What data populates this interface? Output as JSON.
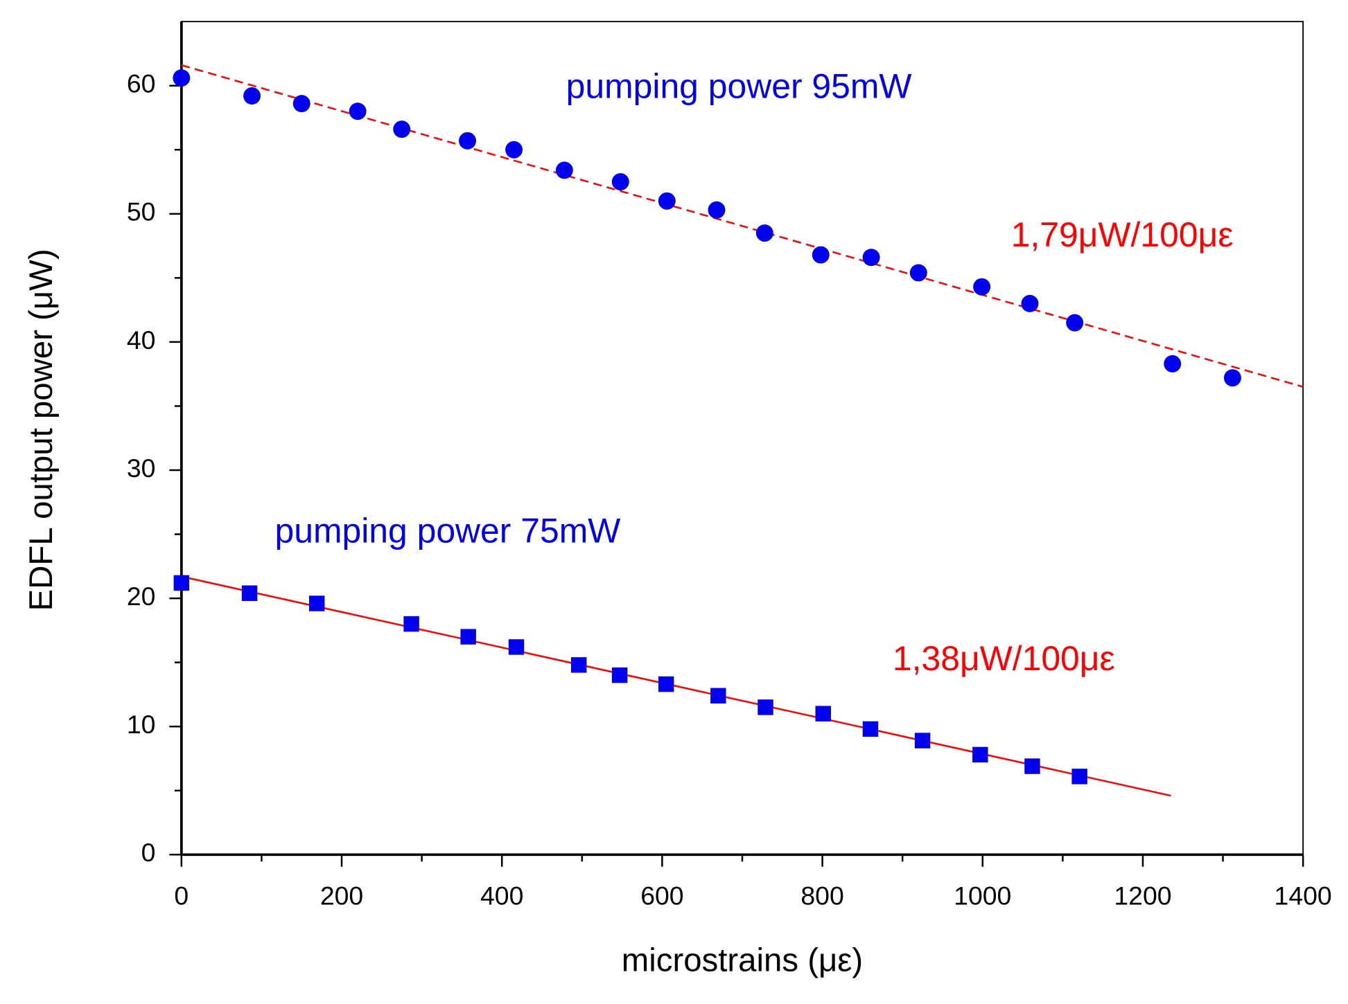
{
  "chart_data": {
    "type": "scatter",
    "x_label": "microstrains (με)",
    "y_label": "EDFL output power (μW)",
    "xlim": [
      0,
      1400
    ],
    "xticks": [
      0,
      200,
      400,
      600,
      800,
      1000,
      1200,
      1400
    ],
    "ylim": [
      0,
      65
    ],
    "yticks": [
      0,
      10,
      20,
      30,
      40,
      50,
      60
    ],
    "series": [
      {
        "name": "pumping power 95mW",
        "color": "#0000ee",
        "marker": "circle",
        "x": [
          0,
          88,
          150,
          220,
          275,
          357,
          415,
          478,
          548,
          606,
          668,
          728,
          798,
          861,
          920,
          999,
          1059,
          1115,
          1237,
          1312
        ],
        "values": [
          60.6,
          59.2,
          58.6,
          58.0,
          56.6,
          55.7,
          55.0,
          53.4,
          52.5,
          51.0,
          50.3,
          48.5,
          46.8,
          46.6,
          45.4,
          44.3,
          43.0,
          41.5,
          38.3,
          37.2
        ],
        "fit": {
          "x": [
            0,
            1400
          ],
          "values": [
            61.6,
            36.5
          ],
          "color": "#ff0000",
          "dashed": true
        },
        "fit_label": "1,79μW/100με"
      },
      {
        "name": "pumping power 75mW",
        "color": "#0000ee",
        "marker": "square",
        "x": [
          0,
          85,
          169,
          287,
          358,
          418,
          496,
          547,
          605,
          670,
          729,
          801,
          860,
          925,
          997,
          1062,
          1121
        ],
        "values": [
          21.2,
          20.4,
          19.6,
          18.0,
          17.0,
          16.2,
          14.8,
          14.0,
          13.3,
          12.4,
          11.5,
          11.0,
          9.8,
          8.9,
          7.8,
          6.9,
          6.1
        ],
        "fit": {
          "x": [
            0,
            1235
          ],
          "values": [
            21.7,
            4.6
          ],
          "color": "#ff0000",
          "dashed": false
        },
        "fit_label": "1,38μW/100με"
      }
    ]
  }
}
